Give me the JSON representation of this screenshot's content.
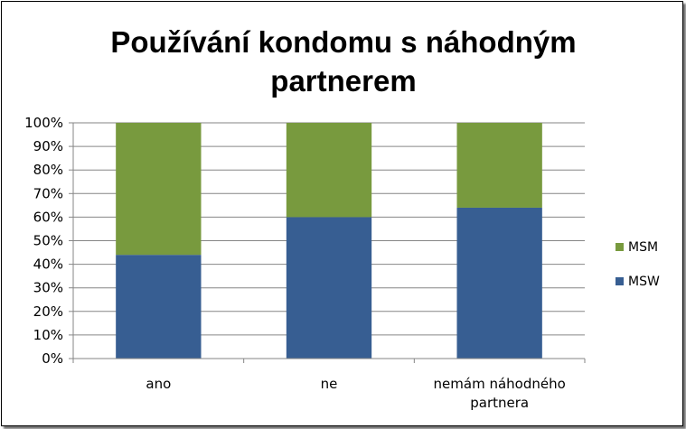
{
  "chart_data": {
    "type": "bar",
    "stacked": true,
    "percent_stacked": true,
    "title_lines": [
      "Používání kondomu s náhodným",
      "partnerem"
    ],
    "categories": [
      {
        "lines": [
          "ano"
        ]
      },
      {
        "lines": [
          "ne"
        ]
      },
      {
        "lines": [
          "nemám náhodného",
          "partnera"
        ]
      }
    ],
    "series": [
      {
        "name": "MSW",
        "color": "#375E92",
        "values": [
          44,
          60,
          64
        ]
      },
      {
        "name": "MSM",
        "color": "#789A3E",
        "values": [
          56,
          40,
          36
        ]
      }
    ],
    "yticks": [
      "0%",
      "10%",
      "20%",
      "30%",
      "40%",
      "50%",
      "60%",
      "70%",
      "80%",
      "90%",
      "100%"
    ],
    "ylim": [
      0,
      100
    ],
    "grid": true,
    "legend_position": "right",
    "legend_order": [
      "MSM",
      "MSW"
    ]
  }
}
